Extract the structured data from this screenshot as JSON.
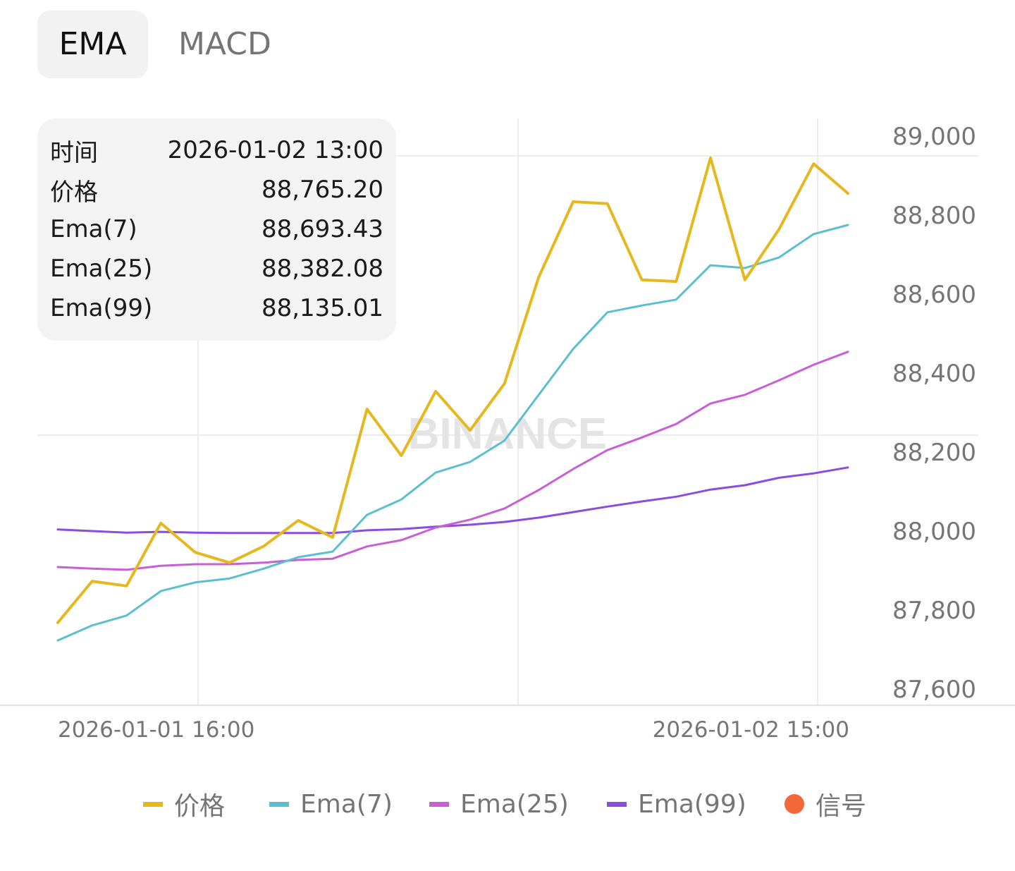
{
  "tabs": [
    {
      "label": "EMA",
      "active": true
    },
    {
      "label": "MACD",
      "active": false
    }
  ],
  "tooltip": {
    "rows": [
      {
        "label": "时间",
        "value": "2026-01-02 13:00"
      },
      {
        "label": "价格",
        "value": "88,765.20"
      },
      {
        "label": "Ema(7)",
        "value": "88,693.43"
      },
      {
        "label": "Ema(25)",
        "value": "88,382.08"
      },
      {
        "label": "Ema(99)",
        "value": "88,135.01"
      }
    ]
  },
  "watermark": "BINANCE",
  "chart_data": {
    "type": "line",
    "title": "",
    "ylim": [
      87600,
      89000
    ],
    "y_ticks": [
      "89,000",
      "88,800",
      "88,600",
      "88,400",
      "88,200",
      "88,000",
      "87,800",
      "87,600"
    ],
    "y_tick_values": [
      89000,
      88800,
      88600,
      88400,
      88200,
      88000,
      87800,
      87600
    ],
    "x_tick_labels": [
      "2026-01-01 16:00",
      "2026-01-02 15:00"
    ],
    "grid": true,
    "legend_position": "bottom",
    "series": [
      {
        "name": "价格",
        "color": "#e6b71e",
        "width": 4,
        "values": [
          87768,
          87873,
          87861,
          88020,
          87946,
          87920,
          87962,
          88027,
          87984,
          88309,
          88191,
          88354,
          88255,
          88373,
          88643,
          88834,
          88829,
          88636,
          88632,
          88945,
          88636,
          88765,
          88930,
          88855
        ]
      },
      {
        "name": "Ema(7)",
        "color": "#5bbfd0",
        "width": 3,
        "values": [
          87723,
          87761,
          87786,
          87848,
          87870,
          87880,
          87905,
          87934,
          87948,
          88041,
          88080,
          88148,
          88175,
          88229,
          88345,
          88461,
          88554,
          88571,
          88586,
          88673,
          88666,
          88693,
          88752,
          88775
        ]
      },
      {
        "name": "Ema(25)",
        "color": "#c85fd4",
        "width": 3,
        "values": [
          87909,
          87905,
          87902,
          87912,
          87916,
          87916,
          87920,
          87927,
          87930,
          87961,
          87977,
          88009,
          88029,
          88057,
          88104,
          88157,
          88205,
          88237,
          88271,
          88323,
          88345,
          88382,
          88421,
          88454
        ]
      },
      {
        "name": "Ema(99)",
        "color": "#8a4de0",
        "width": 3,
        "values": [
          88004,
          88000,
          87996,
          87998,
          87996,
          87995,
          87995,
          87995,
          87995,
          88002,
          88005,
          88011,
          88016,
          88023,
          88034,
          88048,
          88062,
          88075,
          88087,
          88105,
          88116,
          88135,
          88146,
          88161
        ]
      }
    ],
    "legend": [
      {
        "label": "价格",
        "color": "#e6b71e",
        "shape": "line"
      },
      {
        "label": "Ema(7)",
        "color": "#5bbfd0",
        "shape": "line"
      },
      {
        "label": "Ema(25)",
        "color": "#c85fd4",
        "shape": "line"
      },
      {
        "label": "Ema(99)",
        "color": "#8a4de0",
        "shape": "line"
      },
      {
        "label": "信号",
        "color": "#f4693a",
        "shape": "dot"
      }
    ]
  }
}
